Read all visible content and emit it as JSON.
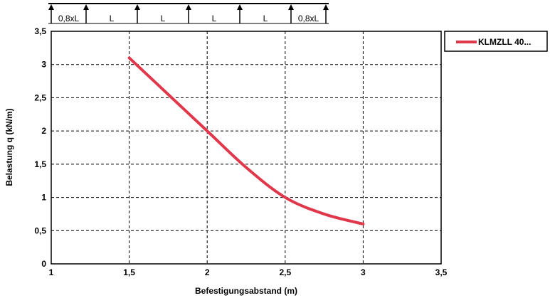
{
  "chart_data": {
    "type": "line",
    "title": "",
    "xlabel": "Befestigungsabstand (m)",
    "ylabel": "Belastung q (kN/m)",
    "xlim": [
      1,
      3.5
    ],
    "ylim": [
      0,
      3.5
    ],
    "x_ticks": [
      "1",
      "1,5",
      "2",
      "2,5",
      "3",
      "3,5"
    ],
    "y_ticks": [
      "0",
      "0,5",
      "1",
      "1,5",
      "2",
      "2,5",
      "3",
      "3,5"
    ],
    "grid": true,
    "legend": "top-right",
    "series": [
      {
        "name": "KLMZLL 40...",
        "color": "#e0384b",
        "x": [
          1.5,
          1.75,
          2.0,
          2.25,
          2.5,
          2.75,
          3.0
        ],
        "y": [
          3.1,
          2.55,
          2.0,
          1.45,
          1.0,
          0.75,
          0.6
        ]
      }
    ]
  },
  "span_diagram": {
    "labels": [
      "0,8xL",
      "L",
      "L",
      "L",
      "L",
      "0,8xL"
    ]
  }
}
